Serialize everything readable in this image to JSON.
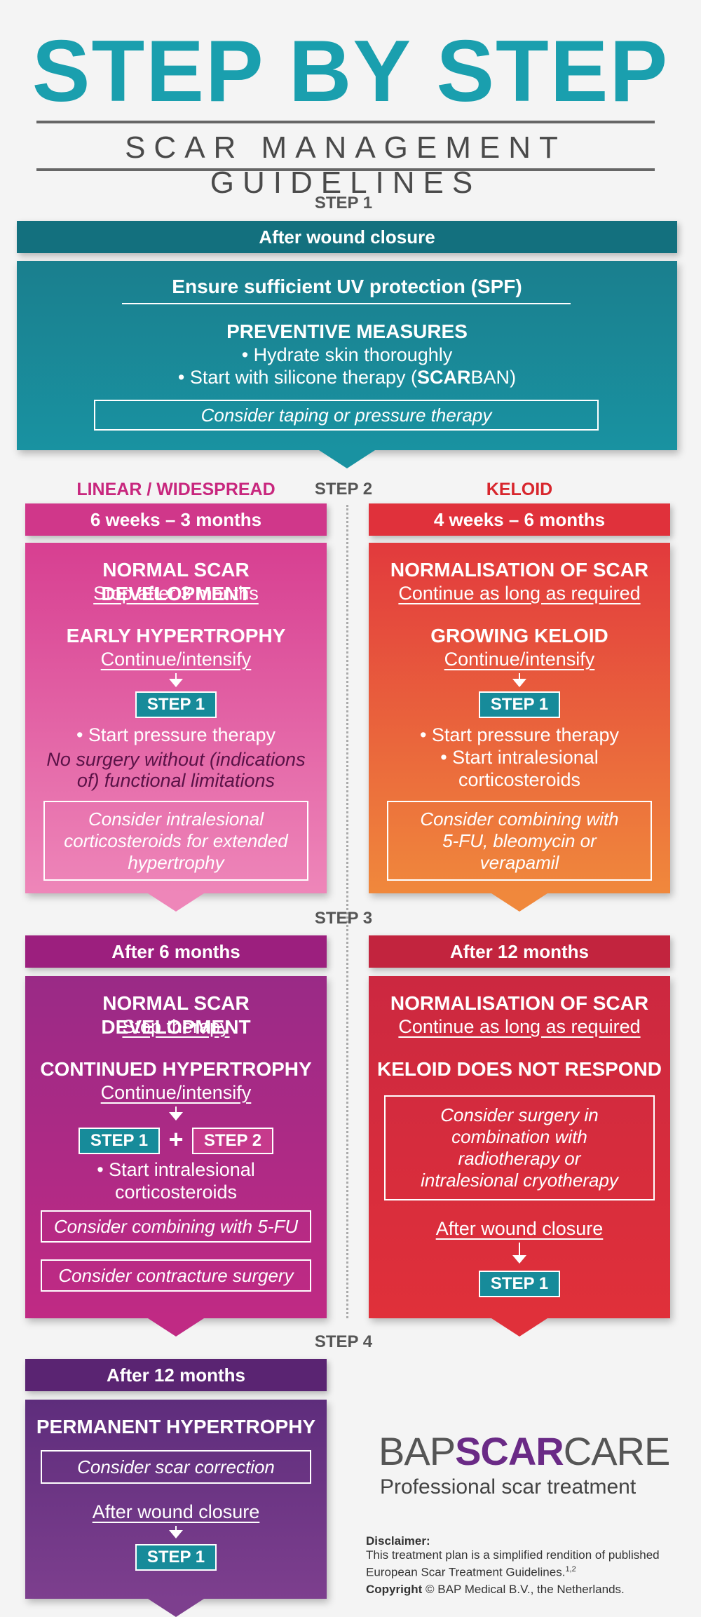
{
  "header": {
    "title": "STEP BY STEP",
    "subtitle": "SCAR MANAGEMENT GUIDELINES"
  },
  "step1": {
    "label": "STEP 1",
    "bar": "After wound closure",
    "uv": "Ensure sufficient UV protection (SPF)",
    "preventive_title": "PREVENTIVE MEASURES",
    "bullet1": "• Hydrate skin thoroughly",
    "bullet2_prefix": "• Start with silicone therapy  (",
    "bullet2_brand_bold": "SCAR",
    "bullet2_brand_rest": "BAN",
    "bullet2_suffix": ")",
    "box": "Consider taping or pressure therapy"
  },
  "step2": {
    "label": "STEP 2",
    "left_heading": "LINEAR / WIDESPREAD",
    "right_heading": "KELOID",
    "left": {
      "bar": "6 weeks – 3 months",
      "h1": "NORMAL SCAR DEVELOPMENT",
      "s1": "Stop after 3 months",
      "h2": "EARLY HYPERTROPHY",
      "s2": "Continue/intensify",
      "chip": "STEP 1",
      "bullet": "• Start pressure therapy",
      "note": "No surgery without (indications of) functional limitations",
      "box": "Consider intralesional corticosteroids for extended hypertrophy"
    },
    "right": {
      "bar": "4 weeks – 6 months",
      "h1": "NORMALISATION OF SCAR",
      "s1": "Continue as long as required",
      "h2": "GROWING KELOID",
      "s2": "Continue/intensify",
      "chip": "STEP 1",
      "bullet1": "• Start pressure therapy",
      "bullet2": "• Start intralesional corticosteroids",
      "box": "Consider combining with 5-FU, bleomycin or verapamil"
    }
  },
  "step3": {
    "label": "STEP 3",
    "left": {
      "bar": "After 6 months",
      "h1": "NORMAL SCAR DEVELOPMENT",
      "s1": "Stop therapy",
      "h2": "CONTINUED HYPERTROPHY",
      "s2": "Continue/intensify",
      "chip1": "STEP 1",
      "plus": "+",
      "chip2": "STEP 2",
      "bullet": "• Start intralesional corticosteroids",
      "box1": "Consider combining with 5-FU",
      "box2": "Consider contracture surgery"
    },
    "right": {
      "bar": "After 12 months",
      "h1": "NORMALISATION OF SCAR",
      "s1": "Continue as long as required",
      "h2": "KELOID DOES NOT RESPOND",
      "box": "Consider surgery in combination with radiotherapy or intralesional cryotherapy",
      "after": "After wound closure",
      "chip": "STEP 1"
    }
  },
  "step4": {
    "label": "STEP 4",
    "bar": "After 12 months",
    "h1": "PERMANENT HYPERTROPHY",
    "box": "Consider scar correction",
    "after": "After wound closure",
    "chip": "STEP 1"
  },
  "brand": {
    "part1": "BAP",
    "part2": "SCAR",
    "part3": "CARE",
    "tagline": "Professional scar treatment"
  },
  "footer": {
    "disclaimer_title": "Disclaimer:",
    "disclaimer_text": "This treatment plan is a simplified rendition of published European Scar Treatment Guidelines.",
    "superscript": "1,2",
    "copyright_label": "Copyright",
    "copyright_symbol": "©",
    "copyright_text": "BAP Medical B.V., the Netherlands."
  },
  "colors": {
    "teal": "#178b9a",
    "pink": "#d94a94",
    "red": "#e23a3a",
    "purple": "#9c2a86",
    "crimson": "#c2243e",
    "violet": "#5d2d7c"
  }
}
